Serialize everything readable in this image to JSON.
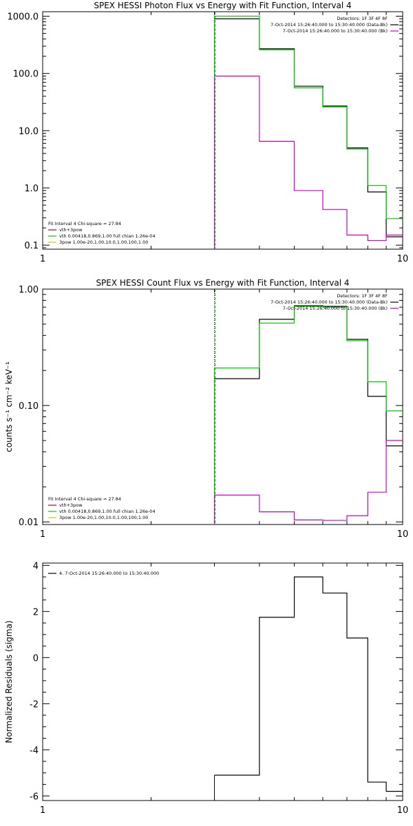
{
  "chart_data": [
    {
      "type": "line",
      "title": "SPEX HESSI Photon Flux vs Energy with Fit Function, Interval 4",
      "xlabel": "",
      "ylabel": "",
      "xscale": "log",
      "yscale": "log",
      "xlim": [
        1,
        10
      ],
      "ylim": [
        0.085,
        1200
      ],
      "xticks": [
        {
          "v": 1,
          "label": "1"
        },
        {
          "v": 10,
          "label": "10"
        }
      ],
      "yticks": [
        {
          "v": 0.1,
          "label": "0.1"
        },
        {
          "v": 1,
          "label": "1.0"
        },
        {
          "v": 10,
          "label": "10.0"
        },
        {
          "v": 100,
          "label": "100.0"
        },
        {
          "v": 1000,
          "label": "1000.0"
        }
      ],
      "vline": 3,
      "vline_color": "#00cc00",
      "bin_edges": [
        3,
        4,
        5,
        6,
        7,
        8,
        9,
        10
      ],
      "series": [
        {
          "color": "#000000",
          "values": [
            900,
            270,
            60,
            27,
            5,
            0.85,
            0.14
          ]
        },
        {
          "color": "#00cc00",
          "values": [
            1000,
            260,
            56,
            26,
            4.8,
            1.1,
            0.29
          ]
        },
        {
          "color": "#cc00cc",
          "values": [
            90,
            6.5,
            0.9,
            0.42,
            0.15,
            0.12,
            0.15
          ]
        }
      ],
      "legend_tr": [
        {
          "text": "Detectors: 1F 3F 4F 8F",
          "color": ""
        },
        {
          "text": "7-Oct-2014 15:26:40.000 to 15:30:40.000 (Data-Bk)",
          "color": "#000000"
        },
        {
          "text": "7-Oct-2014 15:26:40.000 to 15:30:40.000 (Bk)",
          "color": "#cc00cc"
        }
      ],
      "legend_bl": [
        {
          "text": "Fit Interval 4   Chi-square = 27.84",
          "color": ""
        },
        {
          "text": "vth+3pow",
          "color": "#cc0000"
        },
        {
          "text": "vth 0.00418,0.869,1.00   full chian 1.26e-04",
          "color": "#00cc00"
        },
        {
          "text": "3pow 1.00e-20,1.00,10.0,1.00,100,1.00",
          "color": "#cccc00"
        }
      ]
    },
    {
      "type": "line",
      "title": "SPEX HESSI Count Flux vs Energy with Fit Function, Interval 4",
      "xlabel": "",
      "ylabel": "counts s⁻¹ cm⁻² keV⁻¹",
      "xscale": "log",
      "yscale": "log",
      "xlim": [
        1,
        10
      ],
      "ylim": [
        0.0095,
        1.0
      ],
      "xticks": [
        {
          "v": 1,
          "label": "1"
        },
        {
          "v": 10,
          "label": "10"
        }
      ],
      "yticks": [
        {
          "v": 0.01,
          "label": "0.01"
        },
        {
          "v": 0.1,
          "label": "0.10"
        },
        {
          "v": 1,
          "label": "1.00"
        }
      ],
      "vline": 3,
      "vline_color": "#00cc00",
      "bin_edges": [
        3,
        4,
        5,
        6,
        7,
        8,
        9,
        10
      ],
      "series": [
        {
          "color": "#000000",
          "values": [
            0.17,
            0.55,
            0.72,
            0.71,
            0.37,
            0.12,
            0.045
          ]
        },
        {
          "color": "#00cc00",
          "values": [
            0.21,
            0.51,
            0.71,
            0.7,
            0.36,
            0.16,
            0.09
          ]
        },
        {
          "color": "#cc00cc",
          "values": [
            0.017,
            0.0122,
            0.0104,
            0.0103,
            0.0113,
            0.018,
            0.05
          ]
        }
      ],
      "legend_tr": [
        {
          "text": "Detectors: 1F 3F 4F 8F",
          "color": ""
        },
        {
          "text": "7-Oct-2014 15:26:40.000 to 15:30:40.000 (Data-Bk)",
          "color": "#000000"
        },
        {
          "text": "7-Oct-2014 15:26:40.000 to 15:30:40.000 (Bk)",
          "color": "#cc00cc"
        }
      ],
      "legend_bl": [
        {
          "text": "Fit Interval 4   Chi-square = 27.84",
          "color": ""
        },
        {
          "text": "vth+3pow",
          "color": "#cc0000"
        },
        {
          "text": "vth 0.00418,0.869,1.00   full chian 1.26e-04",
          "color": "#00cc00"
        },
        {
          "text": "3pow 1.00e-20,1.00,10.0,1.00,100,1.00",
          "color": "#cccc00"
        }
      ]
    },
    {
      "type": "line",
      "title": "",
      "xlabel": "",
      "ylabel": "Normalized Residuals (sigma)",
      "xscale": "log",
      "yscale": "linear",
      "xlim": [
        1,
        10
      ],
      "ylim": [
        -6.2,
        4.1
      ],
      "xticks": [
        {
          "v": 1,
          "label": "1"
        },
        {
          "v": 10,
          "label": "10"
        }
      ],
      "yticks": [
        {
          "v": -6,
          "label": "-6"
        },
        {
          "v": -4,
          "label": "-4"
        },
        {
          "v": -2,
          "label": "-2"
        },
        {
          "v": 0,
          "label": "0"
        },
        {
          "v": 2,
          "label": "2"
        },
        {
          "v": 4,
          "label": "4"
        }
      ],
      "bin_edges": [
        3,
        4,
        5,
        6,
        7,
        8,
        9,
        10
      ],
      "series": [
        {
          "color": "#000000",
          "values": [
            -5.1,
            1.75,
            3.5,
            2.8,
            0.85,
            -5.4,
            -5.8
          ]
        }
      ],
      "legend_tl": [
        {
          "text": "4.  7-Oct-2014 15:26:40.000 to 15:30:40.000",
          "color": "#000000"
        }
      ]
    }
  ]
}
